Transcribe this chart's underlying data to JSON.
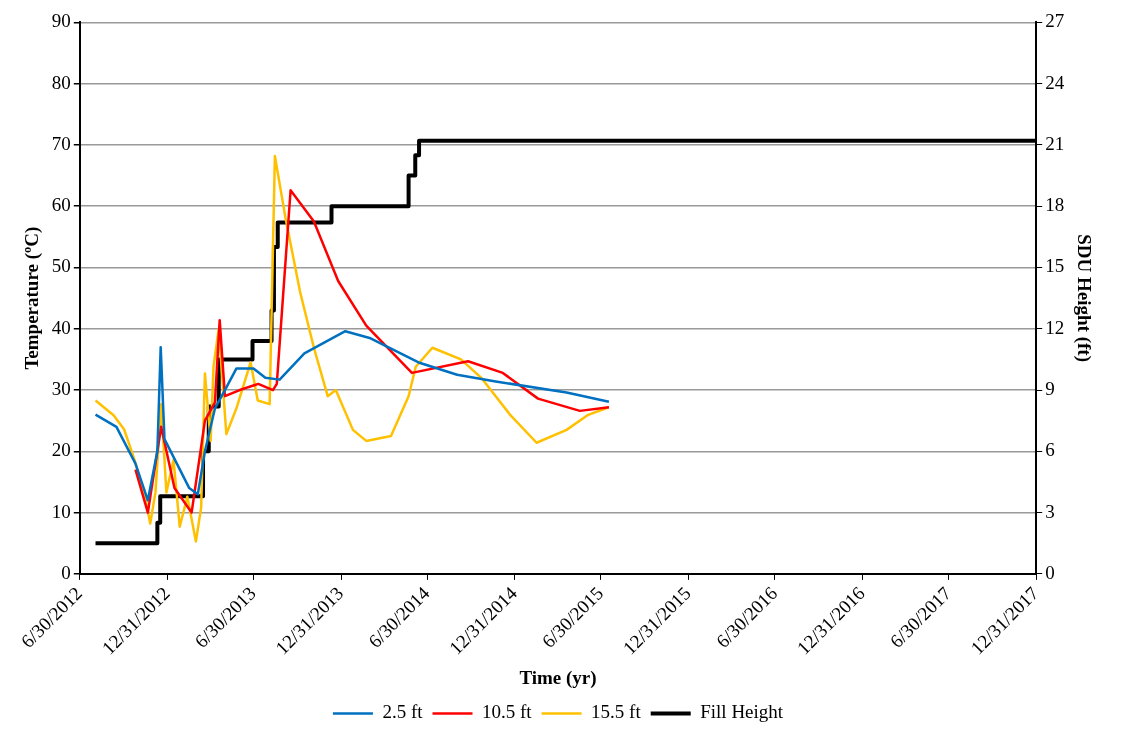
{
  "chart_data": {
    "type": "line",
    "xlabel": "Time (yr)",
    "ylabel": "Temperature (ºC)",
    "y2label": "SDU Height (ft)",
    "xlim": [
      "2012-06-30",
      "2017-12-31"
    ],
    "xticks": [
      {
        "value": "2012-06-30",
        "label": "6/30/2012"
      },
      {
        "value": "2012-12-31",
        "label": "12/31/2012"
      },
      {
        "value": "2013-06-30",
        "label": "6/30/2013"
      },
      {
        "value": "2013-12-31",
        "label": "12/31/2013"
      },
      {
        "value": "2014-06-30",
        "label": "6/30/2014"
      },
      {
        "value": "2014-12-31",
        "label": "12/31/2014"
      },
      {
        "value": "2015-06-30",
        "label": "6/30/2015"
      },
      {
        "value": "2015-12-31",
        "label": "12/31/2015"
      },
      {
        "value": "2016-06-30",
        "label": "6/30/2016"
      },
      {
        "value": "2016-12-31",
        "label": "12/31/2016"
      },
      {
        "value": "2017-06-30",
        "label": "6/30/2017"
      },
      {
        "value": "2017-12-31",
        "label": "12/31/2017"
      }
    ],
    "ylim": [
      0,
      90
    ],
    "yticks": [
      0,
      10,
      20,
      30,
      40,
      50,
      60,
      70,
      80,
      90
    ],
    "y2lim": [
      0,
      27
    ],
    "y2ticks": [
      0,
      3,
      6,
      9,
      12,
      15,
      18,
      21,
      24,
      27
    ],
    "grid": "y",
    "legend": "bottom",
    "marker": "none",
    "series": [
      {
        "name": "2.5 ft",
        "type": "line",
        "color": "#0070c0",
        "x": [
          "2012-08-02",
          "2012-09-15",
          "2012-10-25",
          "2012-11-20",
          "2012-12-10",
          "2012-12-17",
          "2012-12-25",
          "2013-01-20",
          "2013-02-15",
          "2013-03-05",
          "2013-03-20",
          "2013-04-10",
          "2013-05-01",
          "2013-05-25",
          "2013-06-30",
          "2013-07-25",
          "2013-08-24",
          "2013-10-15",
          "2014-01-09",
          "2014-03-01",
          "2014-06-12",
          "2014-09-01",
          "2014-11-21",
          "2015-04-19",
          "2015-07-17"
        ],
        "values": [
          26,
          24,
          18,
          12,
          20,
          37,
          22,
          18,
          14,
          13,
          20,
          27,
          30,
          33.5,
          33.5,
          32,
          31.7,
          36,
          39.6,
          38.5,
          34.5,
          32.5,
          31.4,
          29.6,
          28.1
        ]
      },
      {
        "name": "10.5 ft",
        "type": "line",
        "color": "#ff0000",
        "x": [
          "2012-10-25",
          "2012-11-20",
          "2012-12-18",
          "2013-01-15",
          "2013-02-20",
          "2013-03-20",
          "2013-04-10",
          "2013-04-20",
          "2013-05-01",
          "2013-06-01",
          "2013-07-10",
          "2013-08-10",
          "2013-08-18",
          "2013-09-16",
          "2013-11-04",
          "2013-12-25",
          "2014-02-22",
          "2014-05-29",
          "2014-09-24",
          "2014-12-06",
          "2015-02-18",
          "2015-05-17",
          "2015-07-17"
        ],
        "values": [
          17,
          10,
          24,
          14,
          10,
          25,
          28,
          41.4,
          29,
          30,
          31,
          30,
          31,
          62.6,
          57.5,
          47.8,
          40.5,
          32.8,
          34.7,
          32.8,
          28.6,
          26.6,
          27.2
        ]
      },
      {
        "name": "15.5 ft",
        "type": "line",
        "color": "#ffc000",
        "x": [
          "2012-08-02",
          "2012-09-09",
          "2012-10-01",
          "2012-10-23",
          "2012-11-14",
          "2012-11-25",
          "2012-12-06",
          "2012-12-18",
          "2012-12-29",
          "2013-01-13",
          "2013-01-26",
          "2013-02-11",
          "2013-03-01",
          "2013-03-12",
          "2013-03-20",
          "2013-04-01",
          "2013-04-07",
          "2013-04-18",
          "2013-05-04",
          "2013-05-26",
          "2013-06-24",
          "2013-07-09",
          "2013-08-03",
          "2013-08-14",
          "2013-09-05",
          "2013-10-06",
          "2013-11-04",
          "2013-12-03",
          "2013-12-20",
          "2014-01-25",
          "2014-02-22",
          "2014-04-15",
          "2014-05-22",
          "2014-06-06",
          "2014-07-11",
          "2014-09-09",
          "2014-10-23",
          "2014-12-22",
          "2015-02-15",
          "2015-04-19",
          "2015-06-02",
          "2015-07-17"
        ],
        "values": [
          28.3,
          25.9,
          23.6,
          18.6,
          12.6,
          8.2,
          13.3,
          27.7,
          13.3,
          18.6,
          7.7,
          12.6,
          5.3,
          10.8,
          32.7,
          21.7,
          33.8,
          40,
          22.8,
          27.2,
          34.5,
          28.3,
          27.7,
          68.2,
          58.2,
          46,
          36.9,
          29,
          30,
          23.5,
          21.7,
          22.5,
          29,
          33.8,
          36.9,
          35,
          31.9,
          25.9,
          21.4,
          23.5,
          25.9,
          27.2
        ]
      },
      {
        "name": "Fill Height",
        "type": "step",
        "axis": "y2",
        "color": "#000000",
        "x": [
          "2012-08-02",
          "2012-12-10",
          "2012-12-16",
          "2013-03-16",
          "2013-03-28",
          "2013-04-18",
          "2013-06-28",
          "2013-08-07",
          "2013-08-12",
          "2013-08-20",
          "2013-12-11",
          "2014-05-22",
          "2014-06-05",
          "2014-06-13",
          "2017-12-31"
        ],
        "values": [
          1.5,
          2.5,
          3.8,
          6,
          8.2,
          10.5,
          11.4,
          12.9,
          16,
          17.2,
          18,
          19.5,
          20.5,
          21.2,
          21.2
        ]
      }
    ]
  }
}
